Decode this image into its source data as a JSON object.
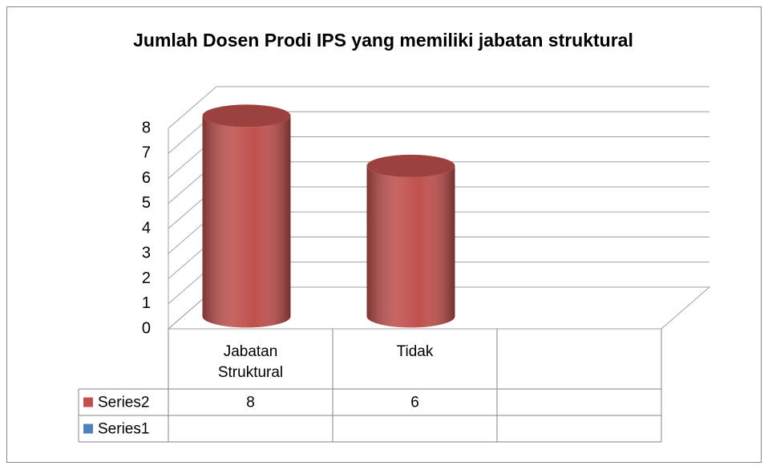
{
  "chart_data": {
    "type": "bar3d",
    "title": "Jumlah Dosen Prodi IPS yang memiliki jabatan struktural",
    "categories": [
      "Jabatan Struktural",
      "Tidak",
      null
    ],
    "series": [
      {
        "name": "Series2",
        "color": "#c0504d",
        "values": [
          8,
          6,
          null
        ]
      },
      {
        "name": "Series1",
        "color": "#4f81bd",
        "values": [
          null,
          null,
          null
        ]
      }
    ],
    "ylim": [
      0,
      8
    ],
    "yticks": [
      0,
      1,
      2,
      3,
      4,
      5,
      6,
      7,
      8
    ],
    "grid": true,
    "data_table": true
  }
}
